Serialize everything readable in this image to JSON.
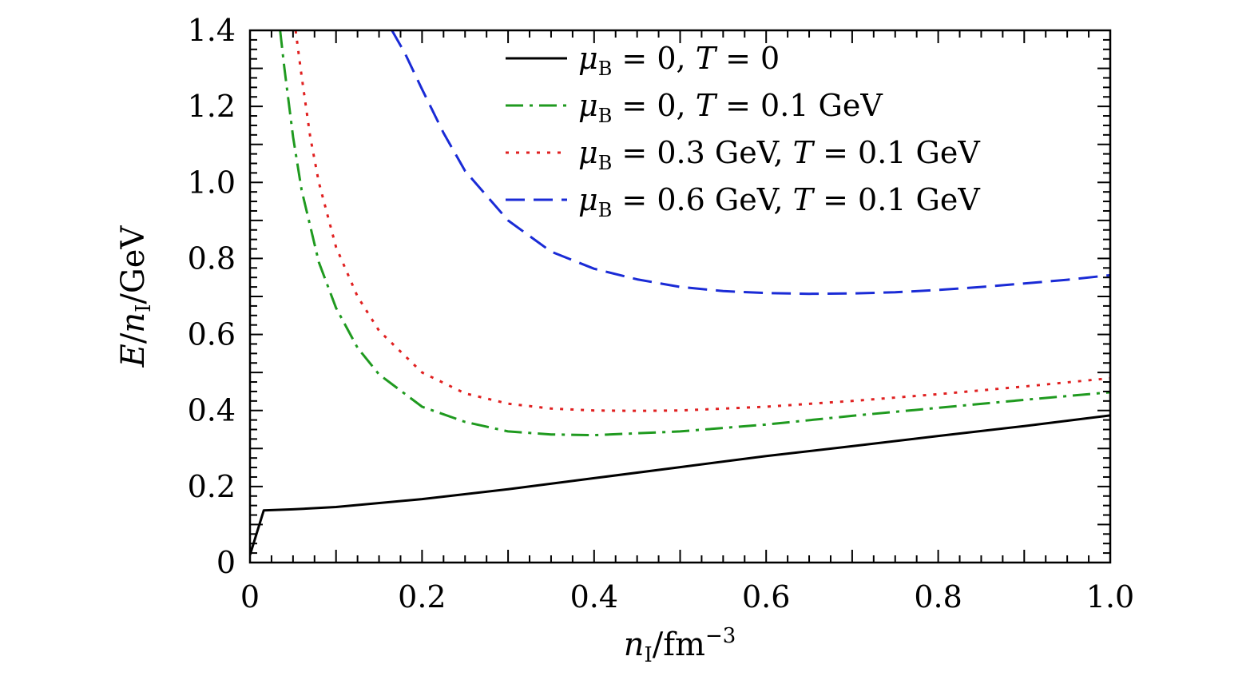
{
  "chart_data": {
    "type": "line",
    "title": "",
    "xlabel": "n_I/fm^-3",
    "ylabel": "E/n_I/GeV",
    "xlim": [
      0,
      1.0
    ],
    "ylim": [
      0,
      1.4
    ],
    "x_ticks": [
      "0",
      "0.2",
      "0.4",
      "0.6",
      "0.8",
      "1.0"
    ],
    "y_ticks": [
      "0",
      "0.2",
      "0.4",
      "0.6",
      "0.8",
      "1.0",
      "1.2",
      "1.4"
    ],
    "x_tick_values": [
      0,
      0.2,
      0.4,
      0.6,
      0.8,
      1.0
    ],
    "y_tick_values": [
      0,
      0.2,
      0.4,
      0.6,
      0.8,
      1.0,
      1.2,
      1.4
    ],
    "legend_position": "top-right",
    "grid": false,
    "series": [
      {
        "name": "μB = 0, T = 0",
        "legend": {
          "mu_value": "0",
          "t_value": "0"
        },
        "color": "#000000",
        "style": "solid",
        "x": [
          0.0,
          0.016,
          0.05,
          0.1,
          0.2,
          0.3,
          0.4,
          0.5,
          0.6,
          0.7,
          0.8,
          0.9,
          1.0
        ],
        "y": [
          0.02,
          0.137,
          0.14,
          0.146,
          0.167,
          0.193,
          0.222,
          0.251,
          0.28,
          0.306,
          0.333,
          0.359,
          0.387
        ]
      },
      {
        "name": "μB = 0, T = 0.1 GeV",
        "legend": {
          "mu_value": "0",
          "t_value": "0.1 GeV"
        },
        "color": "#1f9a1f",
        "style": "dashdot",
        "x": [
          0.035,
          0.04,
          0.05,
          0.06,
          0.08,
          0.1,
          0.125,
          0.15,
          0.2,
          0.25,
          0.3,
          0.35,
          0.4,
          0.5,
          0.6,
          0.7,
          0.8,
          0.9,
          1.0
        ],
        "y": [
          1.4,
          1.3,
          1.12,
          0.98,
          0.79,
          0.67,
          0.565,
          0.495,
          0.41,
          0.37,
          0.345,
          0.337,
          0.335,
          0.345,
          0.363,
          0.386,
          0.407,
          0.428,
          0.448
        ]
      },
      {
        "name": "μB = 0.3 GeV, T = 0.1 GeV",
        "legend": {
          "mu_value": "0.3 GeV",
          "t_value": "0.1 GeV"
        },
        "color": "#e02020",
        "style": "dotted",
        "x": [
          0.053,
          0.06,
          0.07,
          0.08,
          0.1,
          0.125,
          0.15,
          0.2,
          0.25,
          0.3,
          0.35,
          0.4,
          0.45,
          0.5,
          0.6,
          0.7,
          0.8,
          0.9,
          1.0
        ],
        "y": [
          1.4,
          1.28,
          1.12,
          1.0,
          0.83,
          0.7,
          0.61,
          0.5,
          0.445,
          0.418,
          0.405,
          0.4,
          0.399,
          0.4,
          0.41,
          0.425,
          0.443,
          0.463,
          0.485
        ]
      },
      {
        "name": "μB = 0.6 GeV, T = 0.1 GeV",
        "legend": {
          "mu_value": "0.6 GeV",
          "t_value": "0.1 GeV"
        },
        "color": "#1a2bd6",
        "style": "dashed",
        "x": [
          0.165,
          0.18,
          0.2,
          0.225,
          0.25,
          0.3,
          0.35,
          0.4,
          0.45,
          0.5,
          0.55,
          0.6,
          0.65,
          0.7,
          0.75,
          0.8,
          0.85,
          0.9,
          0.95,
          1.0
        ],
        "y": [
          1.4,
          1.34,
          1.245,
          1.13,
          1.03,
          0.9,
          0.818,
          0.773,
          0.745,
          0.725,
          0.714,
          0.709,
          0.707,
          0.708,
          0.711,
          0.717,
          0.725,
          0.734,
          0.744,
          0.756
        ]
      }
    ]
  }
}
